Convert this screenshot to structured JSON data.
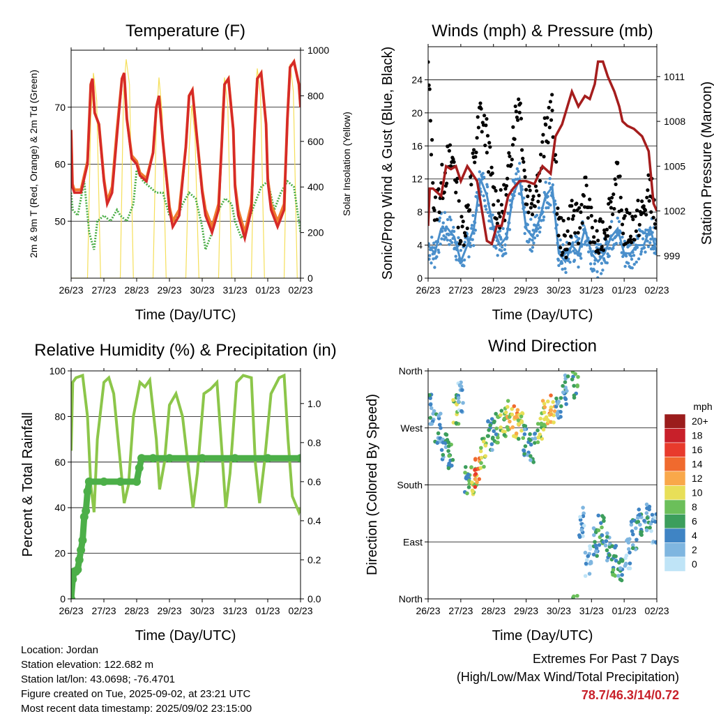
{
  "info": {
    "location": "Location: Jordan",
    "elevation": "Station elevation: 122.682 m",
    "latlon": "Station lat/lon: 43.0698; -76.4701",
    "created": "Figure created on Tue, 2025-09-02, at 23:21 UTC",
    "recent": "Most recent data timestamp: 2025/09/02 23:15:00"
  },
  "extremes": {
    "title": "Extremes For Past 7 Days",
    "subtitle": "(High/Low/Max Wind/Total Precipitation)",
    "values": "78.7/46.3/14/0.72",
    "value_color": "#c8202a"
  },
  "chart_data": [
    {
      "type": "line",
      "title": "Temperature (F)",
      "xlabel": "Time (Day/UTC)",
      "ylabel": "2m & 9m T (Red, Orange) & 2m Td (Green)",
      "ylabel_right": "Solar Insolation (Yellow)",
      "xticks": [
        "26/23",
        "27/23",
        "28/23",
        "29/23",
        "30/23",
        "31/23",
        "01/23",
        "02/23"
      ],
      "xlim": [
        0,
        7
      ],
      "ylim": [
        40,
        80
      ],
      "yticks": [
        50,
        60,
        70
      ],
      "ylim_right": [
        0,
        1000
      ],
      "yticks_right": [
        0,
        200,
        400,
        600,
        800,
        1000
      ],
      "grid": "horizontal",
      "colors": {
        "t2m": "#d62a28",
        "t9m": "#f07a2e",
        "td": "#4caf48",
        "solar": "#f5df5a"
      },
      "series": [
        {
          "name": "2m T",
          "axis": "left",
          "x": [
            0,
            0.04,
            0.1,
            0.3,
            0.5,
            0.6,
            0.65,
            0.72,
            0.85,
            1.0,
            1.1,
            1.25,
            1.4,
            1.55,
            1.62,
            1.7,
            1.85,
            2.0,
            2.1,
            2.3,
            2.5,
            2.6,
            2.68,
            2.8,
            2.95,
            3.0,
            3.1,
            3.3,
            3.5,
            3.6,
            3.7,
            3.85,
            4.0,
            4.1,
            4.3,
            4.5,
            4.6,
            4.68,
            4.8,
            4.95,
            5.0,
            5.1,
            5.3,
            5.5,
            5.6,
            5.68,
            5.8,
            5.95,
            6.0,
            6.1,
            6.3,
            6.5,
            6.6,
            6.68,
            6.8,
            6.95,
            7.0
          ],
          "y": [
            66,
            56,
            55,
            55,
            60,
            74,
            75,
            69,
            67,
            57,
            53,
            55,
            65,
            75,
            76,
            68,
            61,
            60,
            58,
            57,
            62,
            70,
            72,
            64,
            55,
            52,
            49,
            51,
            63,
            72,
            73,
            64,
            55,
            51,
            48,
            52,
            64,
            74,
            75,
            66,
            56,
            51,
            47,
            52,
            66,
            75,
            76,
            67,
            57,
            52,
            49,
            52,
            68,
            77,
            78,
            74,
            70
          ]
        },
        {
          "name": "9m T",
          "axis": "left",
          "x": [
            0,
            0.04,
            0.1,
            0.3,
            0.5,
            0.6,
            0.65,
            0.72,
            0.85,
            1.0,
            1.1,
            1.25,
            1.4,
            1.55,
            1.62,
            1.7,
            1.85,
            2.0,
            2.1,
            2.3,
            2.5,
            2.6,
            2.68,
            2.8,
            2.95,
            3.0,
            3.1,
            3.3,
            3.5,
            3.6,
            3.7,
            3.85,
            4.0,
            4.1,
            4.3,
            4.5,
            4.6,
            4.68,
            4.8,
            4.95,
            5.0,
            5.1,
            5.3,
            5.5,
            5.6,
            5.68,
            5.8,
            5.95,
            6.0,
            6.1,
            6.3,
            6.5,
            6.6,
            6.68,
            6.8,
            6.95,
            7.0
          ],
          "y": [
            66,
            56.5,
            55.5,
            55.5,
            60.5,
            74,
            75,
            69,
            67,
            57.5,
            53.5,
            56,
            66,
            75,
            76,
            68,
            61.5,
            60.5,
            58.5,
            57.5,
            62,
            70,
            72,
            64,
            55.5,
            52.5,
            50,
            52,
            63,
            72,
            73,
            64,
            55.5,
            52,
            49,
            53,
            64,
            74,
            75,
            66,
            56.5,
            52,
            48,
            53,
            66,
            75,
            76,
            67,
            57.5,
            53,
            50,
            53,
            68,
            77,
            78,
            74,
            70
          ]
        },
        {
          "name": "2m Td",
          "axis": "left",
          "x": [
            0,
            0.05,
            0.2,
            0.4,
            0.55,
            0.7,
            0.8,
            1.0,
            1.2,
            1.4,
            1.5,
            1.7,
            1.9,
            2.0,
            2.2,
            2.4,
            2.6,
            2.8,
            3.0,
            3.2,
            3.4,
            3.6,
            3.8,
            4.0,
            4.1,
            4.3,
            4.5,
            4.7,
            4.9,
            5.0,
            5.2,
            5.4,
            5.6,
            5.8,
            6.0,
            6.2,
            6.4,
            6.6,
            6.8,
            6.95,
            7.0
          ],
          "y": [
            55,
            52,
            51,
            57,
            48,
            45,
            50,
            51,
            50,
            52,
            51,
            50,
            53,
            59,
            57,
            56,
            55,
            55,
            51,
            50,
            53,
            55,
            54,
            49,
            45,
            48,
            52,
            54,
            53,
            50,
            47,
            50,
            53,
            56,
            57,
            52,
            55,
            57,
            56,
            50,
            48
          ]
        },
        {
          "name": "Solar",
          "axis": "right",
          "x": [
            0,
            0.5,
            0.6,
            0.68,
            0.78,
            0.9,
            1.5,
            1.6,
            1.68,
            1.78,
            1.9,
            2.5,
            2.6,
            2.68,
            2.78,
            2.9,
            3.5,
            3.6,
            3.68,
            3.78,
            3.9,
            4.5,
            4.6,
            4.68,
            4.78,
            4.9,
            5.5,
            5.6,
            5.68,
            5.78,
            5.9,
            6.5,
            6.6,
            6.68,
            6.78,
            6.9,
            7.0
          ],
          "y": [
            0,
            0,
            700,
            900,
            780,
            0,
            0,
            820,
            960,
            850,
            0,
            0,
            680,
            880,
            720,
            0,
            0,
            560,
            760,
            620,
            0,
            0,
            720,
            880,
            760,
            0,
            0,
            760,
            920,
            800,
            0,
            0,
            780,
            940,
            820,
            0,
            0
          ]
        }
      ]
    },
    {
      "type": "scatter",
      "title": "Winds (mph) & Pressure (mb)",
      "xlabel": "Time (Day/UTC)",
      "ylabel": "Sonic/Prop Wind & Gust (Blue, Black)",
      "ylabel_right": "Station Pressure (Maroon)",
      "xticks": [
        "26/23",
        "27/23",
        "28/23",
        "29/23",
        "30/23",
        "31/23",
        "01/23",
        "02/23"
      ],
      "xlim": [
        0,
        7
      ],
      "ylim": [
        0,
        28
      ],
      "yticks": [
        0,
        4,
        8,
        12,
        16,
        20,
        24
      ],
      "ylim_right": [
        997.5,
        1013
      ],
      "yticks_right": [
        999,
        1002,
        1005,
        1008,
        1011
      ],
      "grid": "horizontal",
      "colors": {
        "wind": "#4a8fcb",
        "gust": "#000000",
        "pressure": "#a51d1d"
      },
      "series": [
        {
          "name": "Wind",
          "axis": "left",
          "x": [
            0,
            0.2,
            0.4,
            0.6,
            0.8,
            1.0,
            1.2,
            1.4,
            1.6,
            1.8,
            2.0,
            2.2,
            2.4,
            2.6,
            2.8,
            3.0,
            3.2,
            3.4,
            3.6,
            3.8,
            4.0,
            4.2,
            4.4,
            4.6,
            4.8,
            5.0,
            5.2,
            5.4,
            5.6,
            5.8,
            6.0,
            6.2,
            6.4,
            6.6,
            6.8,
            7.0
          ],
          "y": [
            4,
            3,
            6,
            6,
            5,
            2,
            4,
            6,
            12,
            10,
            6,
            4,
            5,
            10,
            12,
            6,
            5,
            7,
            10,
            11,
            3,
            2,
            4,
            3,
            6,
            3,
            2,
            3,
            5,
            6,
            3,
            3,
            4,
            4,
            6,
            3
          ]
        },
        {
          "name": "Gust",
          "axis": "left",
          "x": [
            0,
            0.2,
            0.4,
            0.6,
            0.8,
            1.0,
            1.2,
            1.4,
            1.6,
            1.8,
            2.0,
            2.2,
            2.4,
            2.6,
            2.8,
            3.0,
            3.2,
            3.4,
            3.6,
            3.8,
            4.0,
            4.2,
            4.4,
            4.6,
            4.8,
            5.0,
            5.2,
            5.4,
            5.6,
            5.8,
            6.0,
            6.2,
            6.4,
            6.6,
            6.8,
            7.0
          ],
          "y": [
            25,
            8,
            11,
            14,
            14,
            5,
            8,
            14,
            20,
            17,
            10,
            8,
            10,
            18,
            22,
            10,
            10,
            12,
            18,
            20,
            6,
            4,
            8,
            6,
            11,
            6,
            4,
            6,
            9,
            12,
            6,
            6,
            7,
            8,
            11,
            6
          ]
        },
        {
          "name": "Pressure",
          "axis": "right",
          "x": [
            0,
            0.05,
            0.15,
            0.4,
            0.55,
            0.7,
            0.85,
            1.0,
            1.2,
            1.5,
            1.8,
            1.95,
            2.1,
            2.25,
            2.45,
            2.6,
            2.8,
            3.0,
            3.25,
            3.5,
            3.75,
            3.9,
            4.1,
            4.4,
            4.6,
            4.8,
            4.95,
            5.1,
            5.2,
            5.35,
            5.5,
            5.7,
            5.85,
            5.95,
            6.1,
            6.3,
            6.55,
            6.75,
            6.9,
            7.0
          ],
          "y": [
            1001,
            1003.5,
            1003.5,
            1003,
            1005,
            1004.8,
            1005,
            1004,
            1005,
            1004,
            1000,
            999.8,
            1001,
            1001,
            1003,
            1003.5,
            1004,
            1004,
            1003.8,
            1005,
            1004.5,
            1007,
            1007.8,
            1010,
            1009,
            1009.7,
            1009.5,
            1010.5,
            1012,
            1012,
            1011,
            1010,
            1009,
            1008,
            1007.7,
            1007.5,
            1007,
            1006,
            1002.5,
            1002
          ]
        }
      ]
    },
    {
      "type": "line",
      "title": "Relative Humidity (%) & Precipitation (in)",
      "xlabel": "Time (Day/UTC)",
      "ylabel": "Percent & Total Rainfall",
      "xticks": [
        "26/23",
        "27/23",
        "28/23",
        "29/23",
        "30/23",
        "31/23",
        "01/23",
        "02/23"
      ],
      "xlim": [
        0,
        7
      ],
      "ylim": [
        0,
        100
      ],
      "yticks": [
        0,
        20,
        40,
        60,
        80,
        100
      ],
      "ylim_right": [
        0,
        1.167
      ],
      "yticks_right": [
        0.0,
        0.2,
        0.4,
        0.6,
        0.8,
        1.0
      ],
      "grid": "horizontal",
      "colors": {
        "rh": "#8cc64a",
        "precip": "#4caf48"
      },
      "series": [
        {
          "name": "RH",
          "axis": "left",
          "x": [
            0,
            0.05,
            0.15,
            0.35,
            0.5,
            0.6,
            0.7,
            0.8,
            1.0,
            1.15,
            1.3,
            1.5,
            1.62,
            1.75,
            1.9,
            2.1,
            2.25,
            2.4,
            2.6,
            2.7,
            2.85,
            3.0,
            3.2,
            3.4,
            3.6,
            3.72,
            3.85,
            4.05,
            4.25,
            4.45,
            4.6,
            4.72,
            4.85,
            5.05,
            5.25,
            5.5,
            5.62,
            5.75,
            5.9,
            6.1,
            6.35,
            6.5,
            6.62,
            6.75,
            6.95,
            7.0
          ],
          "y": [
            65,
            95,
            97,
            98,
            80,
            50,
            38,
            70,
            95,
            97,
            90,
            60,
            42,
            50,
            80,
            95,
            93,
            96,
            70,
            48,
            60,
            85,
            90,
            80,
            55,
            40,
            55,
            90,
            92,
            95,
            65,
            40,
            55,
            95,
            98,
            97,
            60,
            42,
            60,
            90,
            97,
            98,
            70,
            45,
            38,
            40
          ]
        },
        {
          "name": "Precip",
          "axis": "right",
          "x": [
            0,
            0.05,
            0.1,
            0.15,
            0.2,
            0.25,
            0.3,
            0.35,
            0.4,
            0.45,
            0.5,
            0.55,
            1.0,
            1.5,
            2.0,
            2.08,
            2.15,
            2.5,
            3.0,
            4.0,
            5.0,
            6.0,
            7.0
          ],
          "y": [
            0,
            0.1,
            0.14,
            0.14,
            0.15,
            0.2,
            0.25,
            0.3,
            0.42,
            0.45,
            0.55,
            0.6,
            0.6,
            0.6,
            0.6,
            0.67,
            0.72,
            0.72,
            0.72,
            0.72,
            0.72,
            0.72,
            0.72
          ]
        }
      ]
    },
    {
      "type": "scatter",
      "title": "Wind Direction",
      "xlabel": "Time (Day/UTC)",
      "ylabel": "Direction (Colored By Speed)",
      "xticks": [
        "26/23",
        "27/23",
        "28/23",
        "29/23",
        "30/23",
        "31/23",
        "01/23",
        "02/23"
      ],
      "xlim": [
        0,
        7
      ],
      "ylim": [
        0,
        360
      ],
      "yticks": [
        "North",
        "East",
        "South",
        "West",
        "North"
      ],
      "ytick_values": [
        0,
        90,
        180,
        270,
        360
      ],
      "grid": "horizontal",
      "legend": {
        "title": "mph",
        "labels": [
          "20+",
          "18",
          "16",
          "14",
          "12",
          "10",
          "8",
          "6",
          "4",
          "2",
          "0"
        ],
        "colors": [
          "#9b1c1c",
          "#c8202a",
          "#e83a2c",
          "#f06a2e",
          "#f9a84a",
          "#e8df58",
          "#6bbf5a",
          "#3c9e5c",
          "#3f84c4",
          "#7fb6e0",
          "#bfe4f7"
        ],
        "placement": "right"
      },
      "points_approx": {
        "x": [
          0.1,
          0.3,
          0.5,
          0.7,
          0.85,
          1.0,
          1.2,
          1.4,
          1.5,
          1.7,
          1.9,
          2.1,
          2.3,
          2.5,
          2.7,
          2.85,
          3.0,
          3.2,
          3.4,
          3.6,
          3.8,
          4.0,
          4.2,
          4.5,
          4.7,
          4.9,
          5.1,
          5.3,
          5.5,
          5.7,
          5.9,
          6.1,
          6.3,
          6.5,
          6.7,
          6.9
        ],
        "y": [
          300,
          270,
          240,
          230,
          300,
          320,
          190,
          185,
          200,
          230,
          260,
          270,
          280,
          290,
          280,
          270,
          250,
          240,
          270,
          290,
          300,
          310,
          330,
          340,
          120,
          60,
          90,
          110,
          80,
          60,
          50,
          70,
          100,
          120,
          130,
          110
        ],
        "speed": [
          3,
          4,
          4,
          6,
          8,
          3,
          6,
          10,
          14,
          8,
          4,
          6,
          8,
          10,
          12,
          9,
          4,
          4,
          8,
          10,
          12,
          4,
          4,
          6,
          2,
          2,
          4,
          6,
          4,
          6,
          4,
          2,
          4,
          4,
          4,
          2
        ]
      }
    }
  ]
}
